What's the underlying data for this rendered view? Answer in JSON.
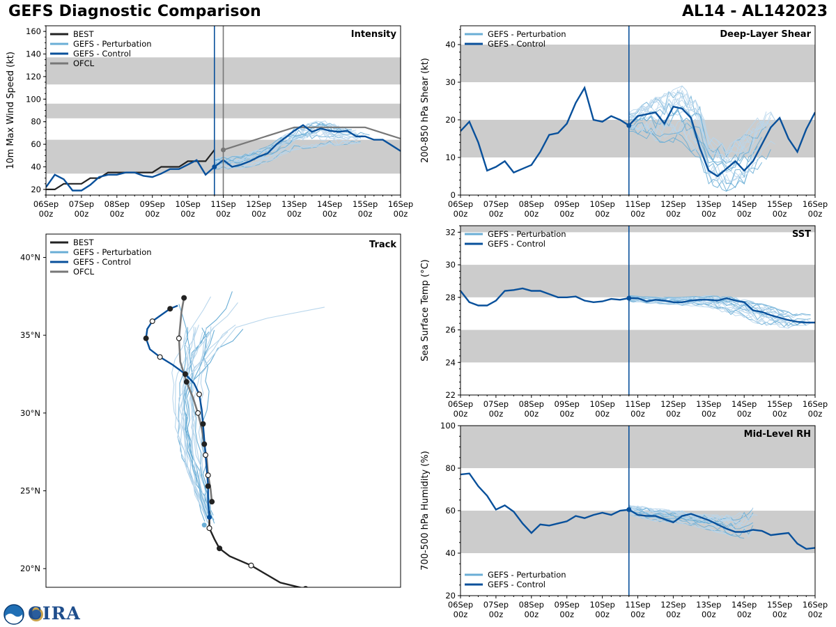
{
  "header": {
    "title": "GEFS Diagnostic Comparison",
    "storm_id": "AL14 - AL142023"
  },
  "colors": {
    "best": "#222222",
    "perturbation": "#6aaed6",
    "perturbation_light": "#b8d6ec",
    "control": "#08509b",
    "ofcl": "#777777",
    "band": "#cccccc",
    "init_line": "#08509b"
  },
  "logo": {
    "text": "CIRA",
    "noaa_icon": "noaa-logo-icon"
  },
  "time_axis": {
    "ticks": [
      {
        "day": "06Sep",
        "hour": "00z"
      },
      {
        "day": "07Sep",
        "hour": "00z"
      },
      {
        "day": "08Sep",
        "hour": "00z"
      },
      {
        "day": "09Sep",
        "hour": "00z"
      },
      {
        "day": "10Sep",
        "hour": "00z"
      },
      {
        "day": "11Sep",
        "hour": "00z"
      },
      {
        "day": "12Sep",
        "hour": "00z"
      },
      {
        "day": "13Sep",
        "hour": "00z"
      },
      {
        "day": "14Sep",
        "hour": "00z"
      },
      {
        "day": "15Sep",
        "hour": "00z"
      },
      {
        "day": "16Sep",
        "hour": "00z"
      }
    ],
    "init_day": 4.75,
    "ofcl_init_day": 5.0
  },
  "legend_full": [
    "BEST",
    "GEFS - Perturbation",
    "GEFS - Control",
    "OFCL"
  ],
  "legend_gefs": [
    "GEFS - Perturbation",
    "GEFS - Control"
  ],
  "chart_data": [
    {
      "id": "intensity",
      "type": "line",
      "title": "Intensity",
      "xlabel": "",
      "ylabel": "10m Max Wind Speed (kt)",
      "xlim": [
        0,
        10
      ],
      "ylim": [
        15,
        165
      ],
      "yticks": [
        20,
        40,
        60,
        80,
        100,
        120,
        140,
        160
      ],
      "bands": [
        [
          34,
          64
        ],
        [
          83,
          96
        ],
        [
          113,
          137
        ]
      ],
      "series": [
        {
          "name": "BEST",
          "x": [
            0,
            0.25,
            0.5,
            0.75,
            1,
            1.25,
            1.5,
            1.75,
            2,
            2.25,
            2.5,
            2.75,
            3,
            3.25,
            3.5,
            3.75,
            4,
            4.25,
            4.5,
            4.75
          ],
          "values": [
            20,
            20,
            25,
            25,
            25,
            30,
            30,
            35,
            35,
            35,
            35,
            35,
            35,
            40,
            40,
            40,
            45,
            45,
            45,
            55
          ]
        },
        {
          "name": "GEFS - Control",
          "x": [
            0,
            0.25,
            0.5,
            0.75,
            1,
            1.25,
            1.5,
            1.75,
            2,
            2.25,
            2.5,
            2.75,
            3,
            3.25,
            3.5,
            3.75,
            4,
            4.25,
            4.5,
            4.75,
            5,
            5.25,
            5.5,
            5.75,
            6,
            6.25,
            6.5,
            6.75,
            7,
            7.25,
            7.5,
            7.75,
            8,
            8.25,
            8.5,
            8.75,
            9,
            9.25,
            9.5,
            9.75,
            10
          ],
          "values": [
            22,
            33,
            29,
            19,
            19,
            24,
            31,
            33,
            33,
            35,
            35,
            32,
            31,
            34,
            38,
            38,
            42,
            46,
            33,
            40,
            46,
            40,
            42,
            45,
            49,
            52,
            60,
            66,
            72,
            77,
            71,
            74,
            72,
            71,
            72,
            67,
            67,
            64,
            64,
            59,
            54
          ]
        },
        {
          "name": "OFCL",
          "x": [
            5,
            5.5,
            6,
            6.5,
            7,
            7.5,
            8,
            8.5,
            9,
            9.5,
            10
          ],
          "values": [
            55,
            60,
            65,
            70,
            75,
            75,
            75,
            75,
            75,
            70,
            65
          ]
        },
        {
          "name": "GEFS - Perturbation",
          "note": "20 members spread",
          "x": [
            4.75,
            5.5,
            6.25,
            7,
            7.75,
            8.5,
            9.25
          ],
          "min": [
            38,
            38,
            44,
            55,
            58,
            60,
            62
          ],
          "max": [
            48,
            50,
            58,
            74,
            82,
            74,
            70
          ]
        }
      ]
    },
    {
      "id": "shear",
      "type": "line",
      "title": "Deep-Layer Shear",
      "xlabel": "",
      "ylabel": "200-850 hPa Shear (kt)",
      "xlim": [
        0,
        10
      ],
      "ylim": [
        0,
        45
      ],
      "yticks": [
        0,
        10,
        20,
        30,
        40
      ],
      "bands": [
        [
          10,
          20
        ],
        [
          30,
          40
        ]
      ],
      "series": [
        {
          "name": "GEFS - Control",
          "x": [
            0,
            0.25,
            0.5,
            0.75,
            1,
            1.25,
            1.5,
            1.75,
            2,
            2.25,
            2.5,
            2.75,
            3,
            3.25,
            3.5,
            3.75,
            4,
            4.25,
            4.5,
            4.75,
            5,
            5.25,
            5.5,
            5.75,
            6,
            6.25,
            6.5,
            6.75,
            7,
            7.25,
            7.5,
            7.75,
            8,
            8.25,
            8.5,
            8.75,
            9,
            9.25,
            9.5,
            9.75,
            10
          ],
          "values": [
            17,
            19.5,
            14,
            6.5,
            7.5,
            9,
            6,
            7,
            8,
            11.5,
            16,
            16.5,
            19,
            24.5,
            28.5,
            20,
            19.5,
            21,
            20,
            18.5,
            21,
            21.5,
            22,
            19,
            23.5,
            23,
            20.5,
            12.5,
            6.5,
            5,
            7,
            9,
            6.5,
            9,
            13.5,
            18,
            20.5,
            15,
            11.5,
            17.5,
            22
          ]
        },
        {
          "name": "GEFS - Perturbation",
          "x": [
            4.75,
            5.5,
            6.25,
            6.75,
            7,
            7.5,
            8,
            8.5,
            9
          ],
          "min": [
            17,
            14,
            14,
            9,
            3,
            1,
            3,
            8,
            14
          ],
          "max": [
            22,
            26,
            29,
            24,
            16,
            13,
            16,
            22,
            23
          ]
        }
      ]
    },
    {
      "id": "track",
      "type": "scatter",
      "title": "Track",
      "xlabel": "",
      "ylabel": "",
      "xlim": [
        -74,
        -46
      ],
      "ylim": [
        18.8,
        41.5
      ],
      "yticks": [
        20,
        25,
        30,
        35,
        40
      ],
      "ytick_labels": [
        "20°N",
        "25°N",
        "30°N",
        "35°N",
        "40°N"
      ],
      "series": [
        {
          "name": "BEST",
          "lon": [
            -53.5,
            -55.5,
            -57.8,
            -59.5,
            -60.3,
            -60.7,
            -61.1,
            -61.1
          ],
          "lat": [
            18.7,
            19.1,
            20.2,
            20.8,
            21.3,
            21.9,
            22.6,
            23.7
          ]
        },
        {
          "name": "GEFS - Control",
          "lon": [
            -61.1,
            -61.2,
            -61.2,
            -61.3,
            -61.4,
            -61.5,
            -61.6,
            -61.7,
            -61.9,
            -62.3,
            -63.0,
            -64.0,
            -65.0,
            -65.8,
            -66.1,
            -66.0,
            -65.6,
            -64.9,
            -64.2,
            -63.6
          ],
          "lat": [
            23.3,
            24.3,
            25.3,
            26.3,
            27.3,
            28.3,
            29.3,
            30.2,
            31.2,
            31.9,
            32.5,
            33.1,
            33.6,
            34.1,
            34.8,
            35.4,
            35.9,
            36.3,
            36.7,
            36.9
          ]
        },
        {
          "name": "OFCL",
          "lon": [
            -60.9,
            -61.0,
            -61.2,
            -61.3,
            -61.5,
            -61.7,
            -62.0,
            -62.4,
            -62.9,
            -63.4,
            -63.5,
            -63.3,
            -63.1
          ],
          "lat": [
            24.3,
            25.1,
            26.0,
            27.0,
            28.0,
            29.0,
            30.0,
            31.0,
            32.0,
            33.3,
            34.8,
            36.5,
            37.4
          ]
        },
        {
          "name": "GEFS - Perturbation",
          "note": "20 members spread; far outliers reach NE",
          "lon_range": [
            -70,
            -56
          ],
          "lat_range": [
            22.7,
            38.7
          ]
        }
      ]
    },
    {
      "id": "sst",
      "type": "line",
      "title": "SST",
      "xlabel": "",
      "ylabel": "Sea Surface Temp (°C)",
      "xlim": [
        0,
        10
      ],
      "ylim": [
        22,
        32.4
      ],
      "yticks": [
        22,
        24,
        26,
        28,
        30,
        32
      ],
      "bands": [
        [
          24,
          26
        ],
        [
          28,
          30
        ],
        [
          32,
          34
        ]
      ],
      "series": [
        {
          "name": "GEFS - Control",
          "x": [
            0,
            0.25,
            0.5,
            0.75,
            1,
            1.25,
            1.5,
            1.75,
            2,
            2.25,
            2.5,
            2.75,
            3,
            3.25,
            3.5,
            3.75,
            4,
            4.25,
            4.5,
            4.75,
            5,
            5.25,
            5.5,
            5.75,
            6,
            6.25,
            6.5,
            6.75,
            7,
            7.25,
            7.5,
            7.75,
            8,
            8.25,
            8.5,
            8.75,
            9,
            9.25,
            9.5,
            9.75,
            10
          ],
          "values": [
            28.4,
            27.7,
            27.5,
            27.5,
            27.8,
            28.4,
            28.45,
            28.55,
            28.4,
            28.4,
            28.2,
            28.0,
            28.0,
            28.05,
            27.8,
            27.7,
            27.75,
            27.9,
            27.85,
            27.95,
            27.95,
            27.75,
            27.85,
            27.8,
            27.7,
            27.7,
            27.8,
            27.85,
            27.85,
            27.8,
            27.95,
            27.8,
            27.7,
            27.2,
            27.1,
            26.9,
            26.75,
            26.6,
            26.5,
            26.45,
            26.45
          ]
        },
        {
          "name": "GEFS - Perturbation",
          "x": [
            4.75,
            5.5,
            6.25,
            7,
            7.75,
            8.5,
            9.25,
            10
          ],
          "min": [
            27.7,
            27.6,
            27.5,
            27.4,
            26.8,
            26.3,
            26.1,
            26.3
          ],
          "max": [
            28.1,
            28.0,
            28.0,
            28.1,
            28.0,
            27.6,
            27.1,
            26.9
          ]
        }
      ]
    },
    {
      "id": "rh",
      "type": "line",
      "title": "Mid-Level RH",
      "xlabel": "",
      "ylabel": "700-500 hPa Humidity (%)",
      "xlim": [
        0,
        10
      ],
      "ylim": [
        20,
        100
      ],
      "yticks": [
        20,
        40,
        60,
        80,
        100
      ],
      "bands": [
        [
          40,
          60
        ],
        [
          80,
          100
        ]
      ],
      "series": [
        {
          "name": "GEFS - Control",
          "x": [
            0,
            0.25,
            0.5,
            0.75,
            1,
            1.25,
            1.5,
            1.75,
            2,
            2.25,
            2.5,
            2.75,
            3,
            3.25,
            3.5,
            3.75,
            4,
            4.25,
            4.5,
            4.75,
            5,
            5.25,
            5.5,
            5.75,
            6,
            6.25,
            6.5,
            6.75,
            7,
            7.25,
            7.5,
            7.75,
            8,
            8.25,
            8.5,
            8.75,
            9,
            9.25,
            9.5,
            9.75,
            10
          ],
          "values": [
            77,
            77.5,
            71.5,
            67,
            60.5,
            62.5,
            59.5,
            54,
            49.5,
            53.5,
            53,
            54,
            55,
            57.5,
            56.5,
            58,
            59,
            58,
            60,
            60.5,
            58,
            57.5,
            57.5,
            56,
            54.5,
            57.5,
            58.5,
            57,
            55.5,
            53.5,
            51.5,
            50,
            50,
            51,
            50.5,
            48.5,
            49,
            49.5,
            44.5,
            42,
            42.5
          ]
        },
        {
          "name": "GEFS - Perturbation",
          "x": [
            4.75,
            5.5,
            6.25,
            7,
            7.75,
            8.5
          ],
          "min": [
            58,
            55,
            54,
            51,
            47,
            47
          ],
          "max": [
            63,
            61,
            60,
            58,
            58,
            64
          ]
        }
      ]
    }
  ]
}
